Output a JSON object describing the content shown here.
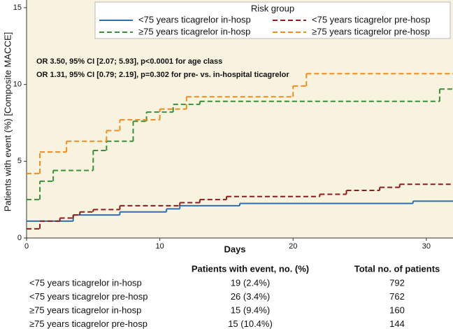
{
  "chart_data": {
    "type": "line",
    "step": "post",
    "xlabel": "Days",
    "ylabel": "Patients with event (%) [Composite MACCE]",
    "xlim": [
      0,
      32
    ],
    "ylim": [
      0,
      15.5
    ],
    "xticks": [
      0,
      10,
      20,
      30
    ],
    "yticks": [
      0,
      5,
      10,
      15
    ],
    "legend": {
      "title": "Risk group",
      "position": "top-right"
    },
    "annotations": [
      "OR 3.50, 95% CI [2.07; 5.93], p<0.0001 for age class",
      "OR 1.31, 95% CI [0.79; 2.19], p=0.302 for pre- vs. in-hospital ticagrelor"
    ],
    "series": [
      {
        "name": "<75 years ticagrelor in-hosp",
        "color": "#2f6db5",
        "dashed": false,
        "x": [
          0,
          3.5,
          7,
          10.5,
          11.5,
          16,
          29
        ],
        "values": [
          1.1,
          1.5,
          1.7,
          1.9,
          2.1,
          2.25,
          2.4
        ]
      },
      {
        "name": "≥75 years ticagrelor in-hosp",
        "color": "#3a8f3a",
        "dashed": true,
        "x": [
          0,
          1,
          2,
          5,
          6,
          8,
          9,
          11,
          13,
          31
        ],
        "values": [
          2.5,
          3.7,
          4.4,
          5.7,
          6.3,
          7.6,
          8.2,
          8.7,
          8.9,
          9.7
        ]
      },
      {
        "name": "<75 years ticagrelor pre-hosp",
        "color": "#8e1c1c",
        "dashed": true,
        "x": [
          0,
          1,
          2.5,
          3.5,
          4,
          5,
          7,
          11.5,
          13,
          15,
          22,
          24,
          26.5,
          28
        ],
        "values": [
          0.6,
          1.1,
          1.3,
          1.5,
          1.7,
          1.85,
          2.1,
          2.3,
          2.5,
          2.7,
          2.85,
          3.1,
          3.3,
          3.5
        ]
      },
      {
        "name": "≥75 years ticagrelor pre-hosp",
        "color": "#f28c1e",
        "dashed": true,
        "x": [
          0,
          1,
          3,
          6,
          7,
          10,
          12,
          20,
          21
        ],
        "values": [
          4.2,
          5.6,
          6.3,
          7.0,
          7.7,
          8.4,
          9.2,
          9.9,
          10.7
        ]
      }
    ]
  },
  "table": {
    "headers": [
      "Patients with event, no. (%)",
      "Total no. of patients"
    ],
    "rows": [
      [
        "<75 years ticagrelor in-hosp",
        "19 (2.4%)",
        "792"
      ],
      [
        "<75 years ticagrelor pre-hosp",
        "26 (3.4%)",
        "762"
      ],
      [
        "≥75 years ticagrelor in-hosp",
        "15 (9.4%)",
        "160"
      ],
      [
        "≥75 years ticagrelor pre-hosp",
        "15 (10.4%)",
        "144"
      ]
    ]
  }
}
